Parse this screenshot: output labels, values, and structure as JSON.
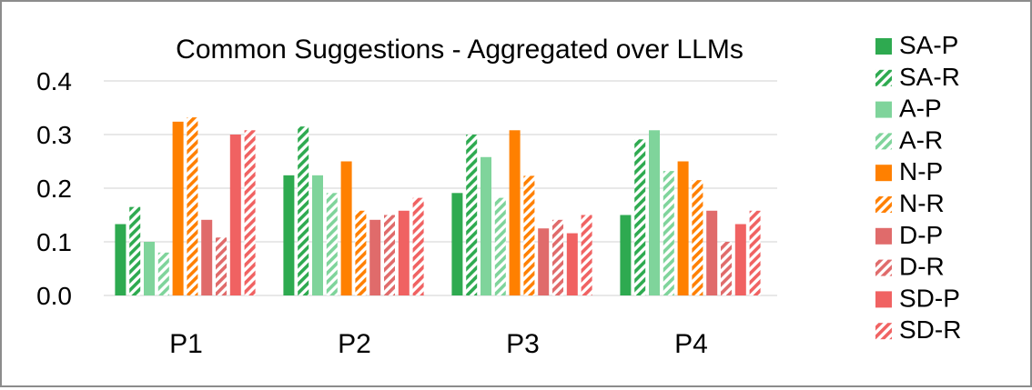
{
  "chart_data": {
    "type": "bar",
    "title": "Common Suggestions - Aggregated over LLMs",
    "xlabel": "",
    "ylabel": "",
    "categories": [
      "P1",
      "P2",
      "P3",
      "P4"
    ],
    "ylim": [
      0,
      0.4
    ],
    "yticks": [
      "0.0",
      "0.1",
      "0.2",
      "0.3",
      "0.4"
    ],
    "grid": true,
    "legend_position": "right",
    "series": [
      {
        "name": "SA-P",
        "color": "#2eaa50",
        "pattern": "solid",
        "values": [
          0.133,
          0.224,
          0.191,
          0.15
        ]
      },
      {
        "name": "SA-R",
        "color": "#2eaa50",
        "pattern": "hatch",
        "values": [
          0.165,
          0.315,
          0.3,
          0.291
        ]
      },
      {
        "name": "A-P",
        "color": "#7fd49b",
        "pattern": "solid",
        "values": [
          0.1,
          0.224,
          0.258,
          0.308
        ]
      },
      {
        "name": "A-R",
        "color": "#7fd49b",
        "pattern": "hatch",
        "values": [
          0.08,
          0.191,
          0.182,
          0.232
        ]
      },
      {
        "name": "N-P",
        "color": "#ff8000",
        "pattern": "solid",
        "values": [
          0.324,
          0.25,
          0.308,
          0.25
        ]
      },
      {
        "name": "N-R",
        "color": "#ff8000",
        "pattern": "hatch",
        "values": [
          0.332,
          0.158,
          0.223,
          0.215
        ]
      },
      {
        "name": "D-P",
        "color": "#e06b6b",
        "pattern": "solid",
        "values": [
          0.141,
          0.141,
          0.125,
          0.158
        ]
      },
      {
        "name": "D-R",
        "color": "#e06b6b",
        "pattern": "hatch",
        "values": [
          0.108,
          0.15,
          0.141,
          0.1
        ]
      },
      {
        "name": "SD-P",
        "color": "#f06262",
        "pattern": "solid",
        "values": [
          0.3,
          0.158,
          0.116,
          0.133
        ]
      },
      {
        "name": "SD-R",
        "color": "#f06262",
        "pattern": "hatch",
        "values": [
          0.308,
          0.182,
          0.15,
          0.158
        ]
      }
    ]
  }
}
